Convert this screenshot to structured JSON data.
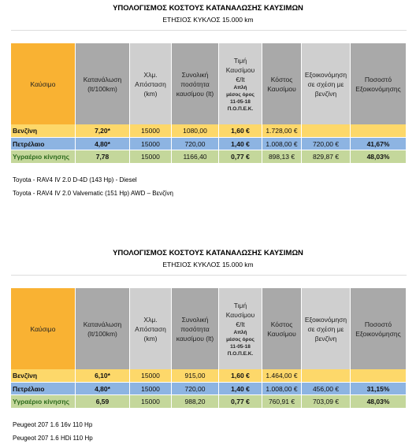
{
  "blocks": [
    {
      "title": "ΥΠΟΛΟΓΙΣΜΟΣ ΚΟΣΤΟΥΣ ΚΑΤΑΝΑΛΩΣΗΣ ΚΑΥΣΙΜΩΝ",
      "subtitle": "ΕΤΗΣΙΟΣ ΚΥΚΛΟΣ 15.000 km",
      "table": {
        "header": [
          [
            "Καύσιμο"
          ],
          [
            "Κατανάλωση",
            "(lt/100km)"
          ],
          [
            "Χλμ.",
            "Απόσταση",
            "(km)"
          ],
          [
            "Συνολική",
            "ποσότητα",
            "καυσίμου (lt)"
          ],
          [
            "Τιμή",
            "Καυσίμου",
            "€/lt",
            "Απλή",
            "μέσος όρος",
            "11-05-18",
            "Π.Ο.Π.Ε.Κ."
          ],
          [
            "Κόστος",
            "Καυσίμου"
          ],
          [
            "Εξοικονόμηση",
            "σε σχέση με",
            "βενζίνη"
          ],
          [
            "Ποσοστό",
            "Εξοικονόμησης"
          ]
        ],
        "rows": [
          [
            "Βενζίνη",
            "7,20*",
            "15000",
            "1080,00",
            "1,60 €",
            "1.728,00 €",
            null,
            null
          ],
          [
            "Πετρέλαιο",
            "4,80*",
            "15000",
            "720,00",
            "1,40 €",
            "1.008,00 €",
            "720,00 €",
            "41,67%"
          ],
          [
            "Υγραέριο κίνησης",
            "7,78",
            "15000",
            "1166,40",
            "0,77 €",
            "898,13 €",
            "829,87 €",
            "48,03%"
          ]
        ]
      },
      "notes": [
        "Toyota - RAV4 IV 2.0 D-4D (143 Hp) - Diesel",
        "Toyota - RAV4 IV 2.0 Valvematic (151 Hp) AWD – Βενζίνη"
      ]
    },
    {
      "title": "ΥΠΟΛΟΓΙΣΜΟΣ ΚΟΣΤΟΥΣ ΚΑΤΑΝΑΛΩΣΗΣ ΚΑΥΣΙΜΩΝ",
      "subtitle": "ΕΤΗΣΙΟΣ ΚΥΚΛΟΣ 15.000 km",
      "table": {
        "header": [
          [
            "Καύσιμο"
          ],
          [
            "Κατανάλωση",
            "(lt/100km)"
          ],
          [
            "Χλμ.",
            "Απόσταση",
            "(km)"
          ],
          [
            "Συνολική",
            "ποσότητα",
            "καυσίμου (lt)"
          ],
          [
            "Τιμή",
            "Καυσίμου",
            "€/lt",
            "Απλή",
            "μέσος όρος",
            "11-05-18",
            "Π.Ο.Π.Ε.Κ."
          ],
          [
            "Κόστος",
            "Καυσίμου"
          ],
          [
            "Εξοικονόμηση",
            "σε σχέση με",
            "βενζίνη"
          ],
          [
            "Ποσοστό",
            "Εξοικονόμησης"
          ]
        ],
        "rows": [
          [
            "Βενζίνη",
            "6,10*",
            "15000",
            "915,00",
            "1,60 €",
            "1.464,00 €",
            null,
            null
          ],
          [
            "Πετρέλαιο",
            "4,80*",
            "15000",
            "720,00",
            "1,40 €",
            "1.008,00 €",
            "456,00 €",
            "31,15%"
          ],
          [
            "Υγραέριο κίνησης",
            "6,59",
            "15000",
            "988,20",
            "0,77 €",
            "760,91 €",
            "703,09 €",
            "48,03%"
          ]
        ]
      },
      "notes": [
        "Peugeot 207 1.6 16v 110 Hp",
        "Peugeot 207 1.6 HDi 110 Hp"
      ]
    }
  ]
}
